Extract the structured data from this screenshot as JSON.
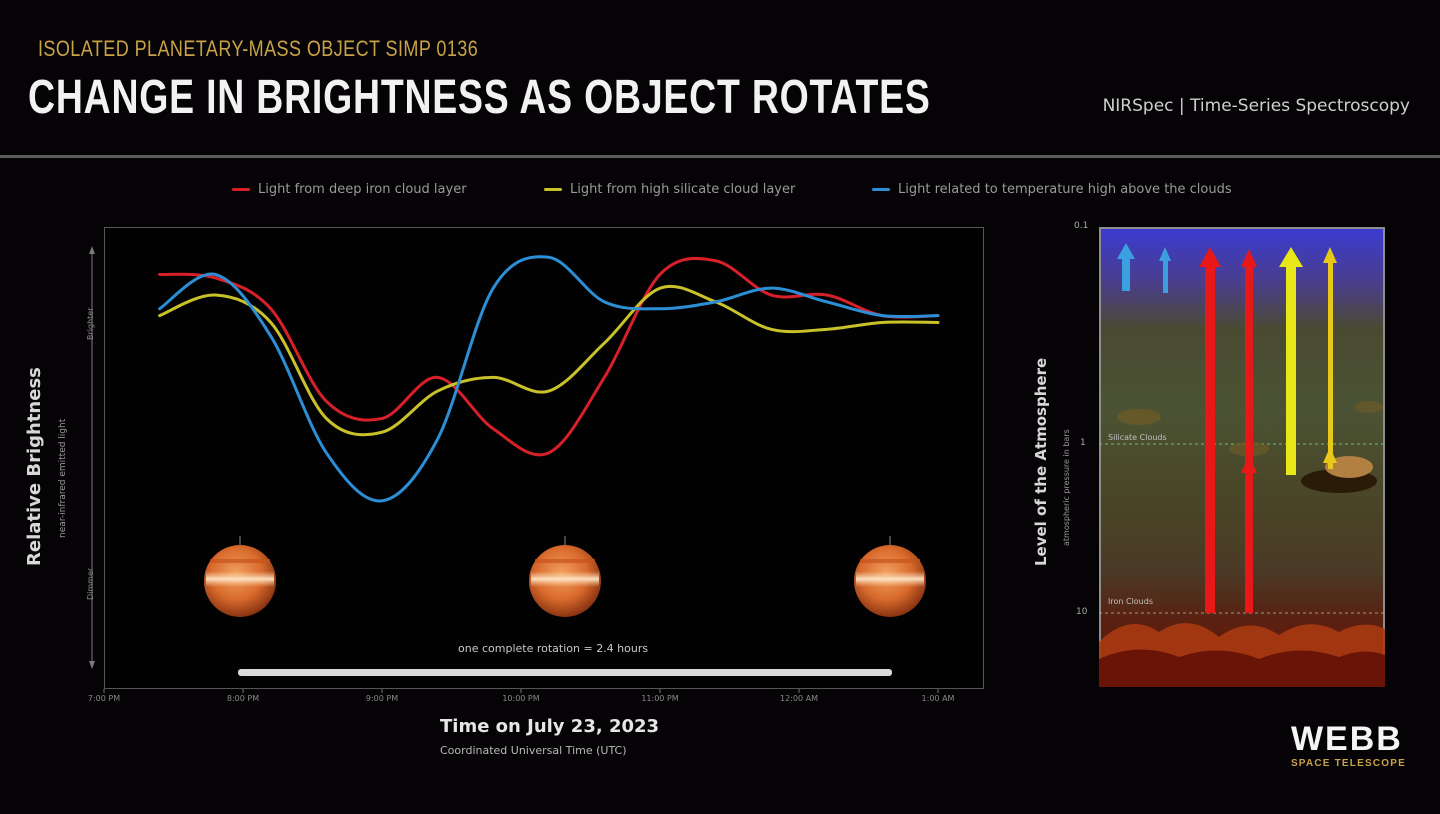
{
  "header": {
    "kicker": "ISOLATED PLANETARY-MASS OBJECT SIMP 0136",
    "title": "CHANGE IN BRIGHTNESS AS OBJECT ROTATES",
    "instrument": "NIRSpec | Time-Series Spectroscopy"
  },
  "colors": {
    "red": "#d8202a",
    "yellow": "#c9c12a",
    "blue": "#2c8fd6",
    "accent": "#c9a24a"
  },
  "chart_data": {
    "type": "line",
    "title": "CHANGE IN BRIGHTNESS AS OBJECT ROTATES",
    "xlabel": "Time on July 23, 2023",
    "xsub": "Coordinated Universal Time (UTC)",
    "ylabel": "Relative Brightness",
    "ysub": "near-infrared emitted light",
    "ytick_top": "Brighter",
    "ytick_bottom": "Dimmer",
    "x_ticks": [
      "7:00 PM",
      "8:00 PM",
      "9:00 PM",
      "10:00 PM",
      "11:00 PM",
      "12:00 AM",
      "1:00 AM"
    ],
    "x": [
      0.4,
      0.8,
      1.2,
      1.6,
      2.0,
      2.4,
      2.8,
      3.2,
      3.6,
      4.0,
      4.4,
      4.8,
      5.2,
      5.6,
      6.0
    ],
    "ylim": [
      0,
      1
    ],
    "grid": false,
    "legend_position": "top",
    "series": [
      {
        "name": "Light from deep iron cloud layer",
        "color": "red",
        "values": [
          0.92,
          0.91,
          0.82,
          0.55,
          0.5,
          0.62,
          0.47,
          0.4,
          0.62,
          0.92,
          0.96,
          0.86,
          0.86,
          0.8,
          0.8
        ]
      },
      {
        "name": "Light from high silicate cloud layer",
        "color": "yellow",
        "values": [
          0.8,
          0.86,
          0.78,
          0.5,
          0.46,
          0.58,
          0.62,
          0.58,
          0.72,
          0.88,
          0.84,
          0.76,
          0.76,
          0.78,
          0.78
        ]
      },
      {
        "name": "Light related to temperature high above the clouds",
        "color": "blue",
        "values": [
          0.82,
          0.92,
          0.74,
          0.4,
          0.26,
          0.44,
          0.88,
          0.97,
          0.84,
          0.82,
          0.84,
          0.88,
          0.84,
          0.8,
          0.8
        ]
      }
    ],
    "rotation_annotation": "one complete rotation = 2.4 hours"
  },
  "atmosphere": {
    "ylabel": "Level of the Atmosphere",
    "ysub": "atmospheric pressure in bars",
    "ticks": [
      "0.1",
      "1",
      "10"
    ],
    "layers": [
      "Silicate Clouds",
      "Iron Clouds"
    ]
  },
  "logo": {
    "word": "WEBB",
    "sub": "SPACE TELESCOPE"
  }
}
